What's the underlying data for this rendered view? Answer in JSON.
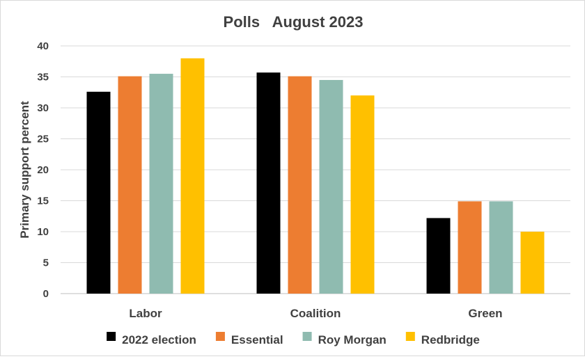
{
  "chart_data": {
    "type": "bar",
    "title": "Polls   August 2023",
    "xlabel": "",
    "ylabel": "Primary support percent",
    "ylim": [
      0,
      40
    ],
    "yticks": [
      0,
      5,
      10,
      15,
      20,
      25,
      30,
      35,
      40
    ],
    "categories": [
      "Labor",
      "Coalition",
      "Green"
    ],
    "series": [
      {
        "name": "2022 election",
        "color": "#000000",
        "values": [
          32.6,
          35.7,
          12.2
        ]
      },
      {
        "name": "Essential",
        "color": "#ED7D31",
        "values": [
          35.1,
          35.1,
          14.9
        ]
      },
      {
        "name": "Roy Morgan",
        "color": "#8FBBB0",
        "values": [
          35.5,
          34.5,
          14.9
        ]
      },
      {
        "name": "Redbridge",
        "color": "#FFC000",
        "values": [
          38.0,
          32.0,
          10.0
        ]
      }
    ],
    "grid": true,
    "legend_position": "bottom"
  }
}
